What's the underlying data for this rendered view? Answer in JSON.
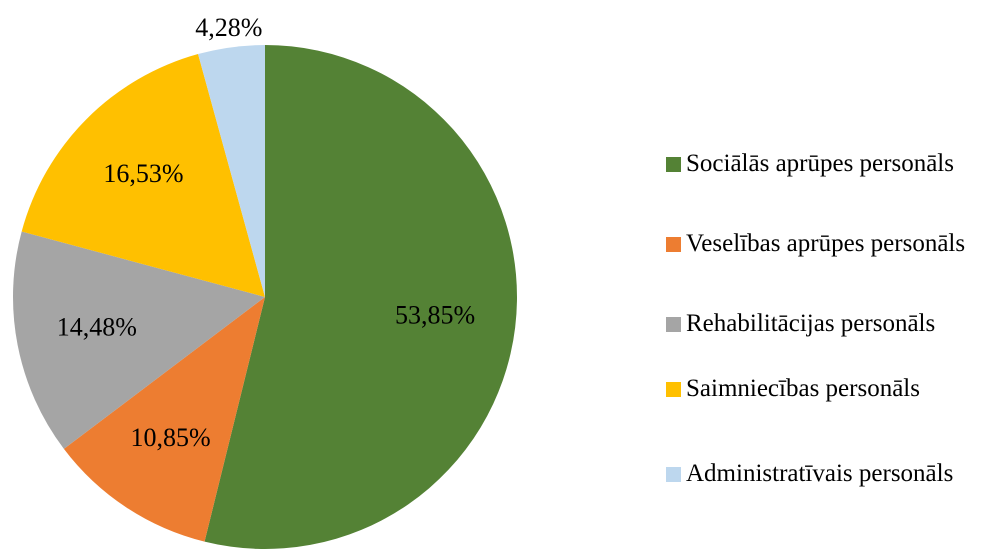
{
  "chart_data": {
    "type": "pie",
    "categories": [
      "Sociālās aprūpes personāls",
      "Veselības aprūpes personāls",
      "Rehabilitācijas personāls",
      "Saimniecības personāls",
      "Administratīvais personāls"
    ],
    "values": [
      53.85,
      10.85,
      14.48,
      16.53,
      4.28
    ],
    "value_labels": [
      "53,85%",
      "10,85%",
      "14,48%",
      "16,53%",
      "4,28%"
    ],
    "colors": [
      "#548235",
      "#ed7d31",
      "#a5a5a5",
      "#ffc000",
      "#bdd7ee"
    ],
    "legend": "right"
  }
}
